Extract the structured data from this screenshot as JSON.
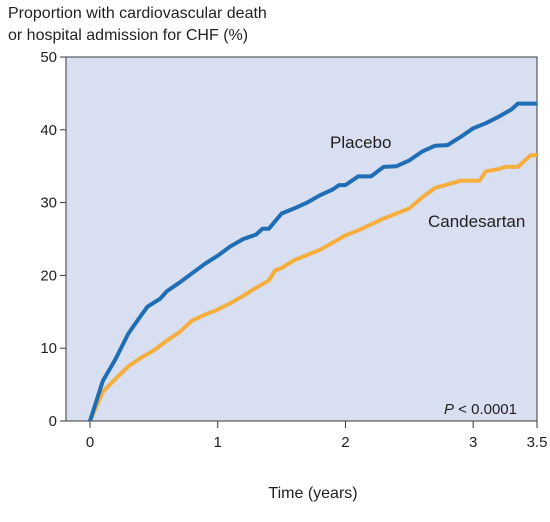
{
  "chart_data": {
    "type": "line",
    "title": "",
    "ylabel_lines": [
      "Proportion with cardiovascular death",
      "or hospital admission for CHF (%)"
    ],
    "xlabel": "Time (years)",
    "xlim": [
      0,
      3.5
    ],
    "ylim": [
      0,
      50
    ],
    "x_ticks": [
      {
        "value": 0,
        "label": "0"
      },
      {
        "value": 1,
        "label": "1"
      },
      {
        "value": 2,
        "label": "2"
      },
      {
        "value": 3,
        "label": "3"
      },
      {
        "value": 3.5,
        "label": "3.5"
      }
    ],
    "y_ticks": [
      {
        "value": 0,
        "label": "0"
      },
      {
        "value": 10,
        "label": "10"
      },
      {
        "value": 20,
        "label": "20"
      },
      {
        "value": 30,
        "label": "30"
      },
      {
        "value": 40,
        "label": "40"
      },
      {
        "value": 50,
        "label": "50"
      }
    ],
    "grid": false,
    "background_color": "#d7dff0",
    "annotation": {
      "italic": "P",
      "rest": " < 0.0001"
    },
    "series": [
      {
        "name": "Placebo",
        "color": "#1f6db5",
        "points": [
          [
            0,
            0
          ],
          [
            0.1,
            5.5
          ],
          [
            0.2,
            8.5
          ],
          [
            0.3,
            12
          ],
          [
            0.4,
            14.5
          ],
          [
            0.45,
            15.7
          ],
          [
            0.55,
            16.8
          ],
          [
            0.6,
            17.8
          ],
          [
            0.7,
            19
          ],
          [
            0.8,
            20.3
          ],
          [
            0.9,
            21.6
          ],
          [
            1.0,
            22.7
          ],
          [
            1.1,
            24
          ],
          [
            1.2,
            25
          ],
          [
            1.3,
            25.6
          ],
          [
            1.35,
            26.4
          ],
          [
            1.4,
            26.4
          ],
          [
            1.5,
            28.5
          ],
          [
            1.6,
            29.2
          ],
          [
            1.7,
            30
          ],
          [
            1.8,
            31
          ],
          [
            1.9,
            31.8
          ],
          [
            1.95,
            32.4
          ],
          [
            2.0,
            32.4
          ],
          [
            2.1,
            33.6
          ],
          [
            2.2,
            33.6
          ],
          [
            2.3,
            34.9
          ],
          [
            2.4,
            35
          ],
          [
            2.5,
            35.8
          ],
          [
            2.6,
            37
          ],
          [
            2.7,
            37.8
          ],
          [
            2.8,
            37.9
          ],
          [
            2.9,
            39
          ],
          [
            3.0,
            40.2
          ],
          [
            3.1,
            40.9
          ],
          [
            3.2,
            41.8
          ],
          [
            3.3,
            42.8
          ],
          [
            3.35,
            43.6
          ],
          [
            3.5,
            43.6
          ]
        ]
      },
      {
        "name": "Candesartan",
        "color": "#f6ae3f",
        "points": [
          [
            0,
            0
          ],
          [
            0.1,
            4
          ],
          [
            0.2,
            5.8
          ],
          [
            0.3,
            7.5
          ],
          [
            0.4,
            8.7
          ],
          [
            0.5,
            9.7
          ],
          [
            0.6,
            11
          ],
          [
            0.7,
            12.2
          ],
          [
            0.8,
            13.8
          ],
          [
            0.9,
            14.6
          ],
          [
            1.0,
            15.3
          ],
          [
            1.1,
            16.2
          ],
          [
            1.2,
            17.2
          ],
          [
            1.3,
            18.3
          ],
          [
            1.4,
            19.3
          ],
          [
            1.45,
            20.7
          ],
          [
            1.5,
            21
          ],
          [
            1.6,
            22.1
          ],
          [
            1.7,
            22.8
          ],
          [
            1.8,
            23.5
          ],
          [
            1.9,
            24.5
          ],
          [
            2.0,
            25.5
          ],
          [
            2.1,
            26.2
          ],
          [
            2.2,
            27
          ],
          [
            2.3,
            27.8
          ],
          [
            2.4,
            28.5
          ],
          [
            2.5,
            29.2
          ],
          [
            2.6,
            30.7
          ],
          [
            2.7,
            32
          ],
          [
            2.8,
            32.5
          ],
          [
            2.9,
            33
          ],
          [
            3.0,
            33
          ],
          [
            3.05,
            33
          ],
          [
            3.1,
            34.3
          ],
          [
            3.2,
            34.6
          ],
          [
            3.25,
            34.9
          ],
          [
            3.35,
            34.9
          ],
          [
            3.45,
            36.5
          ],
          [
            3.5,
            36.5
          ]
        ]
      }
    ]
  }
}
